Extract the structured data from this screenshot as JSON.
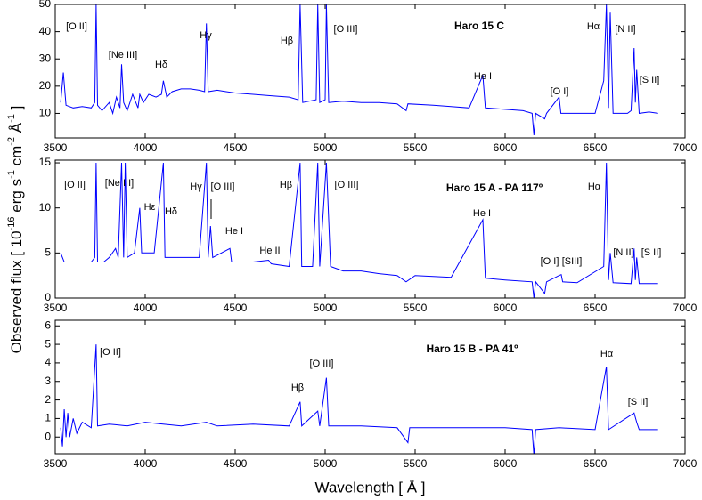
{
  "chart_data": [
    {
      "type": "line",
      "color": "#0000ff",
      "x": [
        3530,
        3545,
        3560,
        3600,
        3650,
        3700,
        3720,
        3727,
        3735,
        3760,
        3800,
        3820,
        3840,
        3860,
        3869,
        3880,
        3900,
        3930,
        3960,
        3970,
        3990,
        4020,
        4060,
        4090,
        4101,
        4120,
        4150,
        4200,
        4250,
        4300,
        4330,
        4340,
        4350,
        4400,
        4450,
        4500,
        4600,
        4700,
        4800,
        4850,
        4861,
        4875,
        4950,
        4959,
        4970,
        5000,
        5007,
        5020,
        5100,
        5200,
        5300,
        5400,
        5450,
        5460,
        5600,
        5700,
        5800,
        5876,
        5890,
        6000,
        6100,
        6150,
        6160,
        6170,
        6220,
        6230,
        6300,
        6310,
        6400,
        6500,
        6548,
        6563,
        6575,
        6584,
        6600,
        6680,
        6700,
        6717,
        6724,
        6731,
        6745,
        6800,
        6850
      ],
      "values": [
        14,
        25,
        13,
        12,
        12.5,
        12,
        14,
        50,
        13,
        11,
        14,
        10,
        16,
        12,
        28,
        14,
        11,
        17,
        12,
        17,
        14,
        17,
        16,
        17,
        22,
        16,
        18,
        19,
        19,
        18.5,
        18,
        43,
        18,
        18.5,
        18,
        17.5,
        17,
        16.5,
        16,
        15,
        50,
        14,
        15,
        50,
        14,
        15,
        50,
        14,
        14.5,
        14,
        14,
        13.5,
        11,
        13.5,
        13,
        12.5,
        12,
        24,
        12,
        11.5,
        11,
        10,
        2,
        10,
        8,
        10,
        16,
        10,
        10,
        10,
        22,
        50,
        12,
        47,
        10,
        10,
        11,
        34,
        14,
        26,
        10,
        10.5,
        10
      ],
      "xlim": [
        3500,
        7000
      ],
      "xticks": [
        3500,
        4000,
        4500,
        5000,
        5500,
        6000,
        6500,
        7000
      ],
      "ylim": [
        1,
        50
      ],
      "yticks": [
        10,
        20,
        30,
        40,
        50
      ],
      "annotations": [
        "[O II]",
        "[Ne III]",
        "Hδ",
        "Hγ",
        "Hβ",
        "[O III]",
        "Haro 15 C",
        "He I",
        "[O I]",
        "Hα",
        "[N II]",
        "[S II]"
      ]
    },
    {
      "type": "line",
      "color": "#0000ff",
      "x": [
        3530,
        3550,
        3600,
        3650,
        3700,
        3720,
        3727,
        3735,
        3770,
        3800,
        3835,
        3850,
        3869,
        3880,
        3889,
        3900,
        3940,
        3970,
        3980,
        4050,
        4101,
        4110,
        4200,
        4300,
        4340,
        4350,
        4363,
        4375,
        4471,
        4480,
        4600,
        4686,
        4700,
        4800,
        4861,
        4870,
        4930,
        4959,
        4970,
        5007,
        5030,
        5100,
        5200,
        5300,
        5400,
        5450,
        5500,
        5700,
        5876,
        5890,
        6000,
        6150,
        6160,
        6170,
        6220,
        6230,
        6300,
        6312,
        6320,
        6400,
        6548,
        6563,
        6575,
        6584,
        6600,
        6700,
        6717,
        6724,
        6731,
        6745,
        6850
      ],
      "values": [
        5,
        4,
        4,
        4,
        4,
        4.5,
        15,
        4,
        4,
        4.5,
        5.5,
        4.5,
        15,
        4.5,
        15,
        4.5,
        5,
        10,
        5,
        5,
        15,
        4.5,
        4.5,
        4.5,
        15,
        4.5,
        8,
        4.5,
        5.5,
        4,
        4,
        4.2,
        3.8,
        3.5,
        15,
        3.5,
        3.5,
        15,
        3.5,
        15,
        3.5,
        3,
        3,
        2.7,
        2.5,
        1.8,
        2.5,
        2.3,
        8.7,
        2.2,
        2,
        1.8,
        0,
        1.8,
        0.5,
        1.8,
        2.5,
        2.6,
        1.8,
        1.7,
        3.5,
        15,
        2,
        5,
        1.7,
        1.6,
        5.5,
        2,
        4.5,
        1.6,
        1.6
      ],
      "xlim": [
        3500,
        7000
      ],
      "xticks": [
        3500,
        4000,
        4500,
        5000,
        5500,
        6000,
        6500,
        7000
      ],
      "ylim": [
        0,
        15.3
      ],
      "yticks": [
        0,
        5,
        10,
        15
      ],
      "ylabel": [
        "Observed flux [ 10",
        "-16",
        " erg s",
        "-1",
        " cm",
        "-2",
        " Å",
        "-1",
        " ]"
      ],
      "annotations": [
        "[O II]",
        "[Ne III]",
        "Hε",
        "Hδ",
        "Hγ",
        "[O III]",
        "He I",
        "He II",
        "Hβ",
        "[O III]",
        "Haro 15 A - PA 117º",
        "He I",
        "[O I]",
        "[SIII]",
        "Hα",
        "[N II]",
        "[S II]"
      ]
    },
    {
      "type": "line",
      "color": "#0000ff",
      "x": [
        3530,
        3540,
        3550,
        3560,
        3570,
        3580,
        3600,
        3620,
        3650,
        3700,
        3727,
        3735,
        3800,
        3900,
        4000,
        4100,
        4200,
        4340,
        4400,
        4600,
        4800,
        4861,
        4870,
        4959,
        4970,
        5007,
        5020,
        5200,
        5400,
        5460,
        5470,
        5600,
        5800,
        6000,
        6150,
        6160,
        6170,
        6300,
        6500,
        6563,
        6575,
        6717,
        6731,
        6745,
        6850
      ],
      "values": [
        0.5,
        -0.5,
        1.5,
        0,
        1.3,
        0,
        1,
        0.2,
        0.8,
        0.5,
        5,
        0.6,
        0.7,
        0.6,
        0.8,
        0.7,
        0.6,
        0.8,
        0.6,
        0.7,
        0.6,
        1.9,
        0.6,
        1.4,
        0.6,
        3.2,
        0.6,
        0.6,
        0.5,
        -0.3,
        0.5,
        0.5,
        0.5,
        0.5,
        0.4,
        -1,
        0.4,
        0.5,
        0.4,
        3.8,
        0.4,
        1.3,
        0.8,
        0.4,
        0.4
      ],
      "xlim": [
        3500,
        7000
      ],
      "xticks": [
        3500,
        4000,
        4500,
        5000,
        5500,
        6000,
        6500,
        7000
      ],
      "ylim": [
        -0.9,
        6.3
      ],
      "yticks": [
        0,
        1,
        2,
        3,
        4,
        5,
        6
      ],
      "xlabel": "Wavelength [ Å ]",
      "annotations": [
        "[O II]",
        "[O III]",
        "Hβ",
        "Haro 15 B - PA 41º",
        "Hα",
        "[S II]"
      ]
    }
  ]
}
